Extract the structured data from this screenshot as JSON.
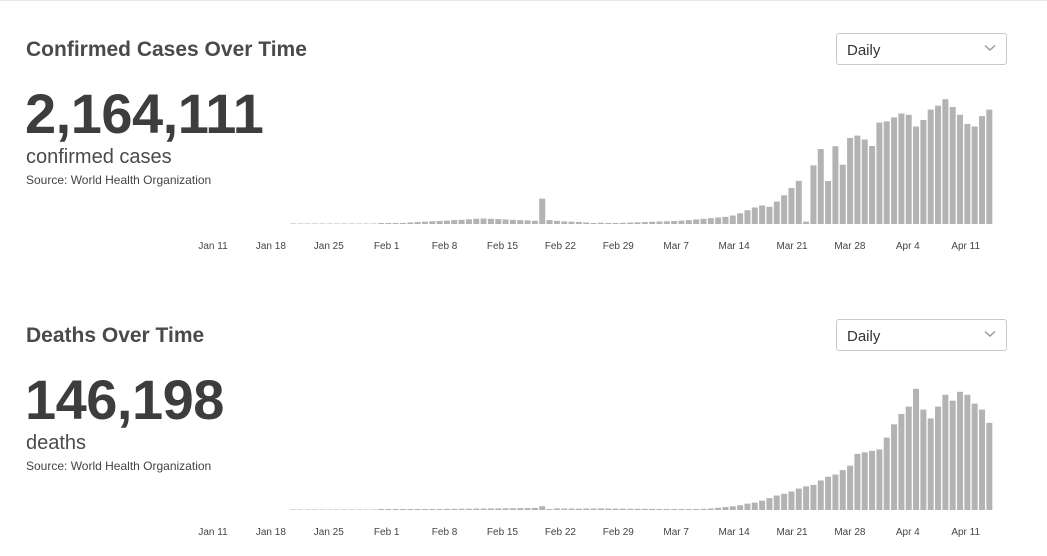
{
  "chart_data": [
    {
      "type": "bar",
      "title": "Confirmed Cases Over Time",
      "total_value": "2,164,111",
      "total_label": "confirmed cases",
      "source": "Source: World Health Organization",
      "selector_value": "Daily",
      "x_start_date": "Jan 11",
      "x_tick_labels": [
        "Jan 11",
        "Jan 18",
        "Jan 25",
        "Feb 1",
        "Feb 8",
        "Feb 15",
        "Feb 22",
        "Feb 29",
        "Mar 7",
        "Mar 14",
        "Mar 21",
        "Mar 28",
        "Apr 4",
        "Apr 11"
      ],
      "bar_color": "#b3b3b3",
      "ylim": [
        0,
        100000
      ],
      "values": [
        0,
        0,
        0,
        0,
        0,
        0,
        0,
        0,
        0,
        0,
        0,
        0,
        200,
        400,
        600,
        800,
        1200,
        1500,
        1800,
        2100,
        2300,
        2600,
        3000,
        3200,
        3600,
        4000,
        4200,
        4000,
        3800,
        3500,
        3200,
        3000,
        2800,
        2500,
        19500,
        3000,
        2400,
        2000,
        1800,
        1600,
        1200,
        700,
        1000,
        800,
        600,
        900,
        1100,
        1300,
        1500,
        1700,
        1900,
        2100,
        2300,
        2600,
        3000,
        3500,
        4000,
        4500,
        5000,
        5500,
        6500,
        8200,
        10600,
        12700,
        14300,
        13200,
        17300,
        22100,
        27700,
        33200,
        1800,
        45100,
        57600,
        33000,
        59800,
        45600,
        66200,
        68000,
        65000,
        60000,
        78000,
        79000,
        82000,
        85000,
        84000,
        75000,
        80000,
        88000,
        91000,
        96000,
        90000,
        84000,
        77000,
        75000,
        83000,
        88000
      ]
    },
    {
      "type": "bar",
      "title": "Deaths Over Time",
      "total_value": "146,198",
      "total_label": "deaths",
      "source": "Source: World Health Organization",
      "selector_value": "Daily",
      "x_start_date": "Jan 11",
      "x_tick_labels": [
        "Jan 11",
        "Jan 18",
        "Jan 25",
        "Feb 1",
        "Feb 8",
        "Feb 15",
        "Feb 22",
        "Feb 29",
        "Mar 7",
        "Mar 14",
        "Mar 21",
        "Mar 28",
        "Apr 4",
        "Apr 11"
      ],
      "bar_color": "#b3b3b3",
      "ylim": [
        0,
        8800
      ],
      "values": [
        0,
        0,
        0,
        0,
        0,
        0,
        0,
        0,
        0,
        0,
        0,
        0,
        20,
        25,
        30,
        40,
        45,
        55,
        60,
        65,
        70,
        75,
        80,
        85,
        90,
        95,
        100,
        105,
        110,
        115,
        120,
        125,
        130,
        140,
        250,
        20,
        110,
        100,
        95,
        90,
        100,
        100,
        110,
        100,
        95,
        90,
        85,
        80,
        80,
        75,
        70,
        70,
        70,
        70,
        70,
        70,
        80,
        100,
        150,
        200,
        250,
        320,
        430,
        500,
        630,
        800,
        980,
        1100,
        1250,
        1450,
        1600,
        1700,
        2000,
        2250,
        2400,
        2700,
        3000,
        3800,
        3900,
        4000,
        4100,
        4900,
        5800,
        6500,
        7000,
        8200,
        6800,
        6200,
        7000,
        7800,
        7400,
        8000,
        7800,
        7200,
        6800,
        5900
      ]
    }
  ]
}
